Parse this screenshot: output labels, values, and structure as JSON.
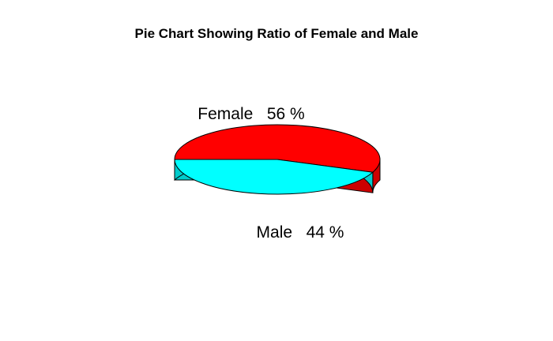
{
  "chart_data": {
    "type": "pie",
    "subtype": "3d",
    "title": "Pie Chart Showing Ratio of Female and Male",
    "slices": [
      {
        "label": "Female",
        "value": 56,
        "percent_label": "56 %",
        "color": "#ff0000",
        "side_color": "#cc0000"
      },
      {
        "label": "Male",
        "value": 44,
        "percent_label": "44 %",
        "color": "#00ffff",
        "side_color": "#00cccc"
      }
    ],
    "legend": "none"
  }
}
